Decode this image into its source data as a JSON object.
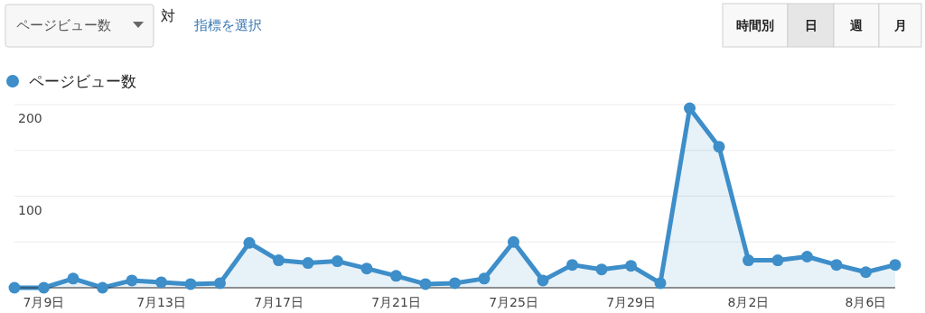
{
  "chart_data": {
    "type": "area",
    "categories": [
      null,
      "7月9日",
      null,
      null,
      null,
      "7月13日",
      null,
      null,
      null,
      "7月17日",
      null,
      null,
      null,
      "7月21日",
      null,
      null,
      null,
      "7月25日",
      null,
      null,
      null,
      "7月29日",
      null,
      null,
      null,
      "8月2日",
      null,
      null,
      null,
      "8月6日",
      null
    ],
    "series": [
      {
        "name": "ページビュー数",
        "color": "#3d8ec9",
        "values": [
          0,
          0,
          10,
          0,
          8,
          6,
          4,
          5,
          49,
          30,
          27,
          29,
          21,
          13,
          4,
          5,
          10,
          50,
          8,
          25,
          20,
          24,
          5,
          196,
          154,
          30,
          30,
          34,
          25,
          17,
          25
        ]
      }
    ],
    "ylim": [
      0,
      200
    ],
    "yticks": [
      {
        "value": 0,
        "label": null
      },
      {
        "value": 50,
        "label": null
      },
      100,
      {
        "value": 150,
        "label": null
      },
      200
    ],
    "grid": "y",
    "legend": "top left",
    "marker": "circle",
    "annotations": [
      "ページビュー数",
      "対",
      "指標を選択",
      "時間別",
      "日",
      "週",
      "月"
    ]
  }
}
